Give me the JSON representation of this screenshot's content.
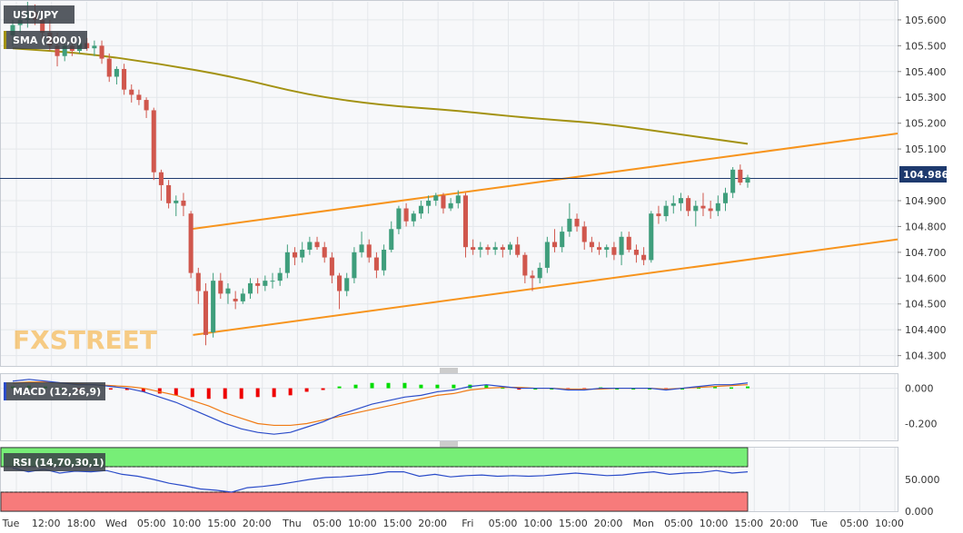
{
  "chart_data": [
    {
      "type": "candlestick",
      "title": "USD/JPY",
      "last_price_label": "104.986",
      "watermark": "FXSTREET",
      "ylim": [
        104.26,
        105.67
      ],
      "y_ticks": [
        "105.600",
        "105.500",
        "105.400",
        "105.300",
        "105.200",
        "105.100",
        "104.900",
        "104.800",
        "104.700",
        "104.600",
        "104.500",
        "104.400",
        "104.300"
      ],
      "x_ticks": [
        "Tue",
        "12:00",
        "18:00",
        "Wed",
        "05:00",
        "10:00",
        "15:00",
        "20:00",
        "Thu",
        "05:00",
        "10:00",
        "15:00",
        "20:00",
        "Fri",
        "05:00",
        "10:00",
        "15:00",
        "20:00",
        "Mon",
        "05:00",
        "10:00",
        "15:00",
        "20:00",
        "Tue",
        "05:00",
        "10:00"
      ],
      "colors": {
        "up": "#3f9e7c",
        "down": "#d0574d",
        "sma": "#a39212",
        "channel": "#f7941d",
        "price_line": "#1e3a6e"
      },
      "indicator": {
        "name": "SMA (200,0)"
      },
      "sma_200": [
        105.49,
        105.47,
        105.43,
        105.38,
        105.31,
        105.27,
        105.25,
        105.22,
        105.2,
        105.16,
        105.12
      ],
      "channel_upper": [
        104.79,
        105.16
      ],
      "channel_lower": [
        104.38,
        104.75
      ],
      "ohlc": [
        [
          105.54,
          105.6,
          105.5,
          105.58
        ],
        [
          105.58,
          105.64,
          105.55,
          105.6
        ],
        [
          105.6,
          105.67,
          105.57,
          105.63
        ],
        [
          105.63,
          105.66,
          105.58,
          105.6
        ],
        [
          105.6,
          105.64,
          105.52,
          105.55
        ],
        [
          105.55,
          105.6,
          105.48,
          105.5
        ],
        [
          105.5,
          105.55,
          105.42,
          105.46
        ],
        [
          105.46,
          105.52,
          105.44,
          105.5
        ],
        [
          105.5,
          105.53,
          105.46,
          105.48
        ],
        [
          105.48,
          105.53,
          105.47,
          105.51
        ],
        [
          105.51,
          105.53,
          105.48,
          105.49
        ],
        [
          105.49,
          105.52,
          105.46,
          105.5
        ],
        [
          105.5,
          105.52,
          105.43,
          105.45
        ],
        [
          105.45,
          105.47,
          105.36,
          105.38
        ],
        [
          105.38,
          105.42,
          105.35,
          105.41
        ],
        [
          105.41,
          105.43,
          105.31,
          105.33
        ],
        [
          105.33,
          105.35,
          105.28,
          105.31
        ],
        [
          105.31,
          105.33,
          105.27,
          105.29
        ],
        [
          105.29,
          105.3,
          105.22,
          105.25
        ],
        [
          105.25,
          105.26,
          104.98,
          105.01
        ],
        [
          105.01,
          105.02,
          104.9,
          104.96
        ],
        [
          104.96,
          104.98,
          104.87,
          104.89
        ],
        [
          104.89,
          104.92,
          104.84,
          104.9
        ],
        [
          104.9,
          104.93,
          104.84,
          104.88
        ],
        [
          104.85,
          104.86,
          104.6,
          104.62
        ],
        [
          104.62,
          104.64,
          104.5,
          104.55
        ],
        [
          104.55,
          104.58,
          104.34,
          104.38
        ],
        [
          104.39,
          104.62,
          104.37,
          104.59
        ],
        [
          104.59,
          104.62,
          104.52,
          104.54
        ],
        [
          104.54,
          104.58,
          104.5,
          104.56
        ],
        [
          104.52,
          104.55,
          104.48,
          104.51
        ],
        [
          104.51,
          104.56,
          104.5,
          104.54
        ],
        [
          104.54,
          104.6,
          104.52,
          104.58
        ],
        [
          104.58,
          104.6,
          104.54,
          104.57
        ],
        [
          104.57,
          104.61,
          104.55,
          104.59
        ],
        [
          104.59,
          104.62,
          104.56,
          104.59
        ],
        [
          104.59,
          104.64,
          104.57,
          104.62
        ],
        [
          104.62,
          104.73,
          104.6,
          104.7
        ],
        [
          104.7,
          104.72,
          104.65,
          104.68
        ],
        [
          104.68,
          104.74,
          104.66,
          104.71
        ],
        [
          104.71,
          104.76,
          104.69,
          104.74
        ],
        [
          104.74,
          104.76,
          104.71,
          104.72
        ],
        [
          104.72,
          104.74,
          104.66,
          104.68
        ],
        [
          104.68,
          104.7,
          104.58,
          104.61
        ],
        [
          104.61,
          104.62,
          104.48,
          104.55
        ],
        [
          104.55,
          104.62,
          104.53,
          104.6
        ],
        [
          104.6,
          104.72,
          104.58,
          104.7
        ],
        [
          104.7,
          104.78,
          104.68,
          104.73
        ],
        [
          104.73,
          104.75,
          104.66,
          104.68
        ],
        [
          104.68,
          104.7,
          104.6,
          104.63
        ],
        [
          104.63,
          104.73,
          104.61,
          104.71
        ],
        [
          104.71,
          104.82,
          104.7,
          104.79
        ],
        [
          104.79,
          104.88,
          104.77,
          104.87
        ],
        [
          104.87,
          104.89,
          104.8,
          104.82
        ],
        [
          104.82,
          104.86,
          104.8,
          104.85
        ],
        [
          104.85,
          104.9,
          104.83,
          104.88
        ],
        [
          104.88,
          104.92,
          104.85,
          104.9
        ],
        [
          104.9,
          104.93,
          104.88,
          104.92
        ],
        [
          104.92,
          104.93,
          104.85,
          104.87
        ],
        [
          104.87,
          104.91,
          104.86,
          104.89
        ],
        [
          104.89,
          104.94,
          104.87,
          104.92
        ],
        [
          104.92,
          104.93,
          104.68,
          104.72
        ],
        [
          104.72,
          104.75,
          104.69,
          104.71
        ],
        [
          104.71,
          104.74,
          104.68,
          104.72
        ],
        [
          104.72,
          104.73,
          104.69,
          104.71
        ],
        [
          104.71,
          104.74,
          104.69,
          104.72
        ],
        [
          104.72,
          104.73,
          104.68,
          104.71
        ],
        [
          104.71,
          104.74,
          104.69,
          104.73
        ],
        [
          104.73,
          104.76,
          104.68,
          104.69
        ],
        [
          104.69,
          104.7,
          104.58,
          104.61
        ],
        [
          104.61,
          104.63,
          104.55,
          104.6
        ],
        [
          104.6,
          104.66,
          104.58,
          104.64
        ],
        [
          104.64,
          104.76,
          104.62,
          104.74
        ],
        [
          104.74,
          104.79,
          104.7,
          104.72
        ],
        [
          104.72,
          104.8,
          104.7,
          104.78
        ],
        [
          104.78,
          104.89,
          104.76,
          104.83
        ],
        [
          104.83,
          104.85,
          104.78,
          104.8
        ],
        [
          104.8,
          104.82,
          104.71,
          104.74
        ],
        [
          104.74,
          104.76,
          104.7,
          104.72
        ],
        [
          104.72,
          104.74,
          104.69,
          104.71
        ],
        [
          104.71,
          104.73,
          104.68,
          104.72
        ],
        [
          104.72,
          104.74,
          104.67,
          104.69
        ],
        [
          104.69,
          104.78,
          104.65,
          104.76
        ],
        [
          104.76,
          104.78,
          104.7,
          104.71
        ],
        [
          104.71,
          104.73,
          104.66,
          104.69
        ],
        [
          104.69,
          104.72,
          104.65,
          104.67
        ],
        [
          104.67,
          104.86,
          104.66,
          104.85
        ],
        [
          104.85,
          104.88,
          104.81,
          104.84
        ],
        [
          104.84,
          104.9,
          104.82,
          104.88
        ],
        [
          104.88,
          104.92,
          104.85,
          104.89
        ],
        [
          104.89,
          104.93,
          104.86,
          104.91
        ],
        [
          104.91,
          104.92,
          104.84,
          104.86
        ],
        [
          104.86,
          104.9,
          104.8,
          104.88
        ],
        [
          104.88,
          104.93,
          104.84,
          104.87
        ],
        [
          104.87,
          104.9,
          104.83,
          104.86
        ],
        [
          104.86,
          104.92,
          104.84,
          104.89
        ],
        [
          104.89,
          104.95,
          104.86,
          104.93
        ],
        [
          104.93,
          105.03,
          104.91,
          105.02
        ],
        [
          105.02,
          105.04,
          104.96,
          104.97
        ],
        [
          104.97,
          105.0,
          104.95,
          104.99
        ]
      ]
    },
    {
      "type": "macd",
      "label": "MACD (12,26,9)",
      "y_ticks": [
        "0.000",
        "-0.200"
      ],
      "ylim": [
        -0.29,
        0.08
      ],
      "colors": {
        "pos": "#00dd00",
        "neg": "#ee0000",
        "macd": "#2b4cc9",
        "signal": "#f07a14"
      },
      "macd": [
        0.04,
        0.05,
        0.04,
        0.03,
        0.02,
        0.02,
        0.01,
        0.0,
        -0.02,
        -0.05,
        -0.08,
        -0.12,
        -0.16,
        -0.2,
        -0.23,
        -0.25,
        -0.26,
        -0.25,
        -0.22,
        -0.19,
        -0.15,
        -0.12,
        -0.09,
        -0.07,
        -0.05,
        -0.04,
        -0.02,
        -0.01,
        0.01,
        0.02,
        0.01,
        0.0,
        0.0,
        0.0,
        -0.01,
        -0.01,
        0.0,
        0.0,
        0.0,
        0.0,
        -0.01,
        0.0,
        0.01,
        0.02,
        0.02,
        0.03
      ],
      "signal": [
        0.03,
        0.035,
        0.035,
        0.03,
        0.025,
        0.02,
        0.015,
        0.01,
        0.0,
        -0.02,
        -0.04,
        -0.07,
        -0.1,
        -0.14,
        -0.17,
        -0.2,
        -0.21,
        -0.21,
        -0.2,
        -0.18,
        -0.16,
        -0.14,
        -0.12,
        -0.1,
        -0.08,
        -0.06,
        -0.04,
        -0.03,
        -0.01,
        0.0,
        0.005,
        0.005,
        0.0,
        0.0,
        -0.005,
        -0.005,
        -0.005,
        0.0,
        0.0,
        0.0,
        -0.005,
        0.0,
        0.005,
        0.01,
        0.015,
        0.02
      ],
      "histogram": [
        0.01,
        0.015,
        0.01,
        0.0,
        -0.005,
        0.0,
        -0.005,
        -0.01,
        -0.02,
        -0.03,
        -0.04,
        -0.05,
        -0.06,
        -0.06,
        -0.06,
        -0.05,
        -0.05,
        -0.04,
        -0.02,
        -0.01,
        0.01,
        0.02,
        0.03,
        0.03,
        0.03,
        0.02,
        0.02,
        0.02,
        0.02,
        0.02,
        0.005,
        -0.005,
        0.0,
        0.0,
        -0.005,
        -0.005,
        0.005,
        0.0,
        0.0,
        0.0,
        -0.005,
        0.0,
        0.005,
        0.01,
        0.005,
        0.01
      ]
    },
    {
      "type": "rsi",
      "label": "RSI (14,70,30,1)",
      "y_ticks": [
        "50.000",
        "0.000"
      ],
      "ylim": [
        0,
        100
      ],
      "levels": [
        70,
        30
      ],
      "colors": {
        "line": "#2b4cc9",
        "overbought": "#77ee77",
        "oversold": "#f77b7b"
      },
      "values": [
        68,
        62,
        66,
        60,
        63,
        62,
        64,
        58,
        55,
        50,
        44,
        40,
        35,
        33,
        30,
        37,
        39,
        42,
        46,
        50,
        53,
        54,
        56,
        58,
        62,
        62,
        55,
        58,
        54,
        56,
        57,
        55,
        56,
        55,
        56,
        58,
        60,
        58,
        56,
        57,
        60,
        62,
        58,
        60,
        61,
        64,
        60,
        62
      ]
    }
  ]
}
